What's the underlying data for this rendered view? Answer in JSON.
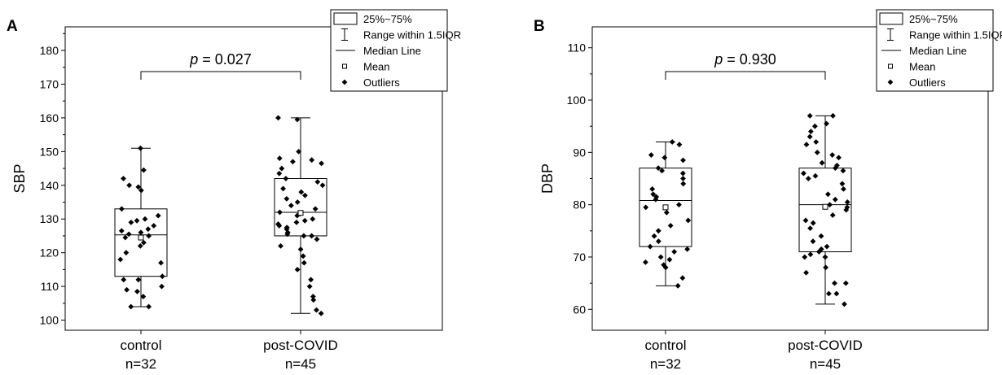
{
  "chart_data": [
    {
      "type": "box",
      "panel": "A",
      "ylabel": "SBP",
      "ylim": [
        97,
        187
      ],
      "yticks": [
        100,
        110,
        120,
        130,
        140,
        150,
        160,
        170,
        180
      ],
      "categories": [
        {
          "line1": "control",
          "line2": "n=32"
        },
        {
          "line1": "post-COVID",
          "line2": "n=45"
        }
      ],
      "boxes": [
        {
          "min": 104,
          "q1": 113,
          "median": 125.3,
          "q3": 133,
          "max": 151,
          "mean": 124.5,
          "points": [
            151,
            144.5,
            142,
            140,
            139.5,
            138.5,
            133,
            131,
            130,
            129.5,
            129,
            128,
            127,
            126.5,
            126,
            125.5,
            125,
            124.5,
            123,
            122,
            120,
            118,
            117,
            113,
            112,
            112,
            110,
            109,
            108.5,
            107,
            104,
            104
          ]
        },
        {
          "min": 102,
          "q1": 125,
          "median": 132,
          "q3": 142,
          "max": 160,
          "mean": 131.8,
          "points": [
            160,
            159.5,
            150,
            148,
            147.5,
            147,
            146.5,
            145,
            143.5,
            142,
            141,
            140,
            139,
            138,
            137,
            136,
            135,
            134,
            133,
            132,
            131.5,
            131,
            130,
            129.5,
            129,
            128.5,
            128,
            127.5,
            127,
            126,
            125.5,
            125,
            125,
            124,
            122,
            121,
            119,
            117,
            115,
            112,
            110,
            107,
            106,
            103,
            102
          ]
        }
      ],
      "annotation": {
        "p_label": "p",
        "p_value": " = 0.027"
      }
    },
    {
      "type": "box",
      "panel": "B",
      "ylabel": "DBP",
      "ylim": [
        56,
        114
      ],
      "yticks": [
        60,
        70,
        80,
        90,
        100,
        110
      ],
      "categories": [
        {
          "line1": "control",
          "line2": "n=32"
        },
        {
          "line1": "post-COVID",
          "line2": "n=45"
        }
      ],
      "boxes": [
        {
          "min": 64.5,
          "q1": 72,
          "median": 80.8,
          "q3": 87,
          "max": 92,
          "mean": 79.5,
          "points": [
            92,
            91.5,
            89.5,
            89,
            88.5,
            87,
            86.5,
            86,
            85,
            84,
            83,
            82,
            81.5,
            81,
            80,
            79.5,
            78.5,
            77,
            76,
            75,
            74,
            73,
            72,
            71.5,
            71,
            70,
            69.5,
            69,
            68.5,
            68,
            66,
            64.5
          ]
        },
        {
          "min": 61,
          "q1": 71,
          "median": 80,
          "q3": 87,
          "max": 97,
          "mean": 79.6,
          "points": [
            97,
            97,
            95.5,
            95,
            94,
            93,
            92,
            91.5,
            90,
            89.5,
            89,
            88,
            87.5,
            87,
            86.5,
            86,
            85.5,
            85,
            84,
            83,
            82,
            81,
            80.5,
            80,
            79.5,
            79,
            78,
            77,
            76.5,
            75.5,
            74,
            73,
            72,
            71.5,
            71,
            70.5,
            70,
            70,
            68,
            67,
            65,
            65,
            63,
            63,
            61
          ]
        }
      ],
      "annotation": {
        "p_label": "p",
        "p_value": " = 0.930"
      }
    }
  ],
  "legend": {
    "items": [
      {
        "icon": "box-icon",
        "label": "25%~75%"
      },
      {
        "icon": "whisker-icon",
        "label": "Range within 1.5IQR"
      },
      {
        "icon": "median-line-icon",
        "label": "Median Line"
      },
      {
        "icon": "mean-square-icon",
        "label": "Mean"
      },
      {
        "icon": "diamond-icon",
        "label": "Outliers"
      }
    ]
  }
}
